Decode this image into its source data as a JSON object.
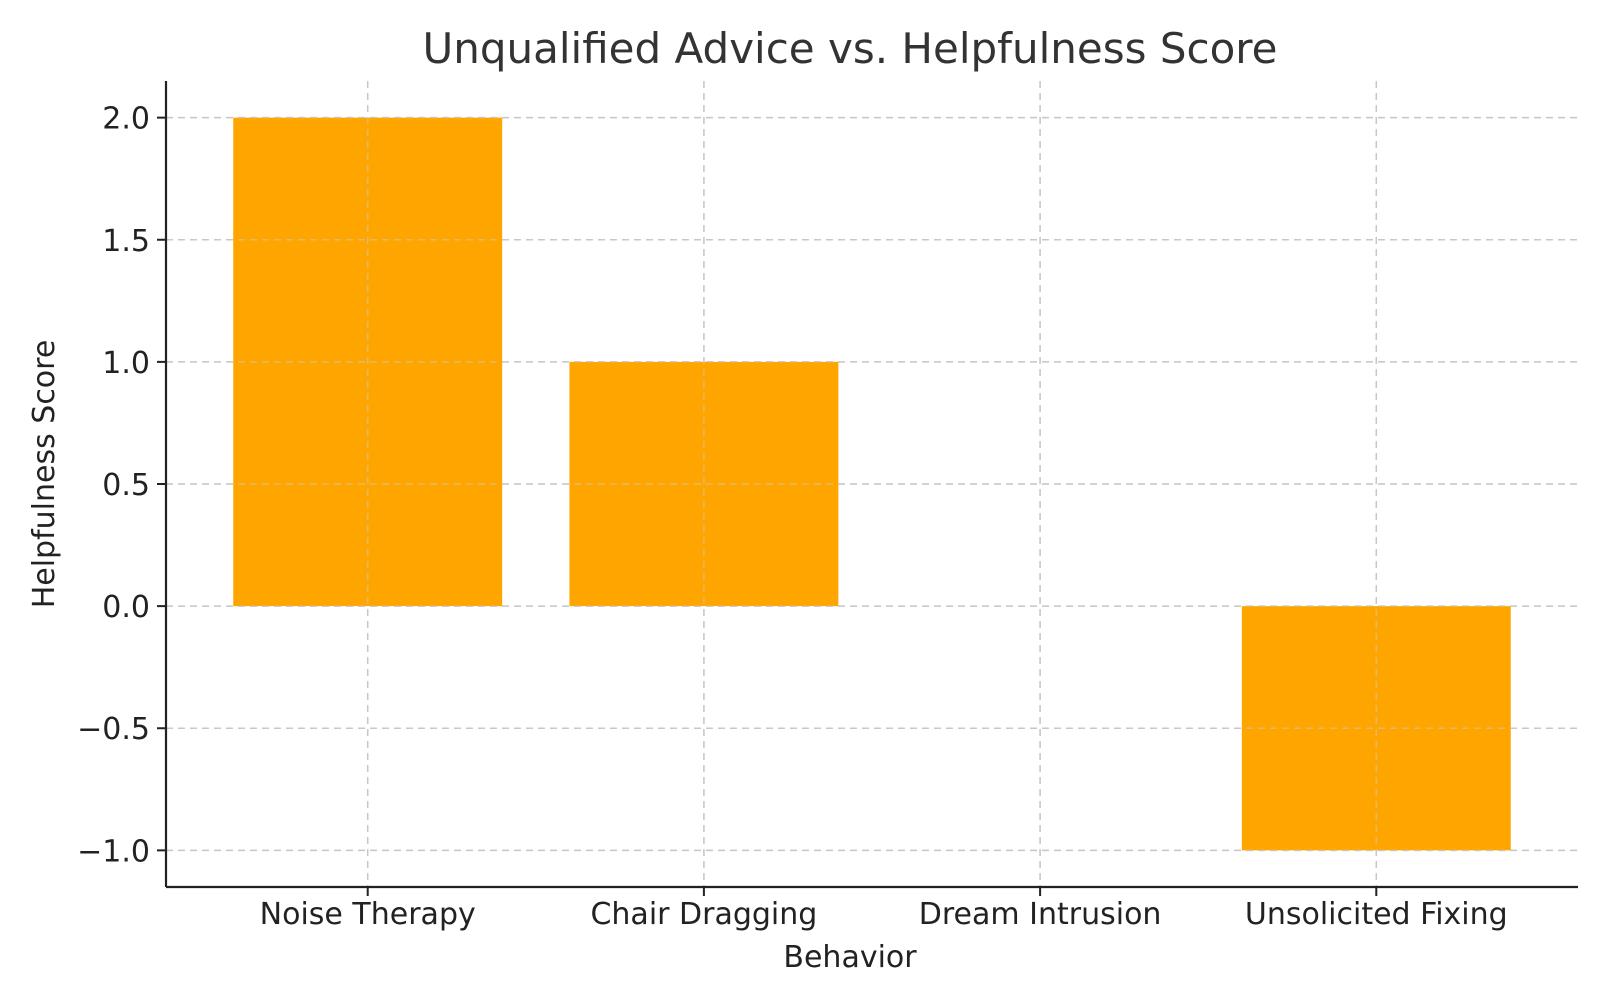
{
  "chart_data": {
    "type": "bar",
    "title": "Unqualified Advice vs. Helpfulness Score",
    "xlabel": "Behavior",
    "ylabel": "Helpfulness Score",
    "categories": [
      "Noise Therapy",
      "Chair Dragging",
      "Dream Intrusion",
      "Unsolicited Fixing"
    ],
    "values": [
      2,
      1,
      0,
      -1
    ],
    "ylim": [
      -1.15,
      2.15
    ],
    "yticks": [
      -1.0,
      -0.5,
      0.0,
      0.5,
      1.0,
      1.5,
      2.0
    ],
    "ytick_labels": [
      "−1.0",
      "−0.5",
      "0.0",
      "0.5",
      "1.0",
      "1.5",
      "2.0"
    ],
    "grid": true,
    "bar_color": "#FFA500"
  }
}
